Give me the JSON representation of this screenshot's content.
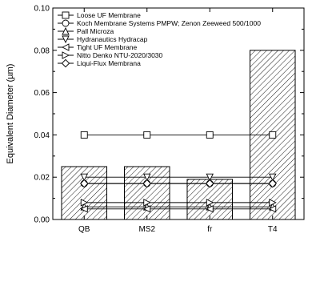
{
  "chart_data": {
    "type": "bar",
    "categories": [
      "QB",
      "MS2",
      "fr",
      "T4"
    ],
    "bar_values": [
      0.025,
      0.025,
      0.019,
      0.08
    ],
    "ylabel": "Equivalent Diameter (µm)",
    "ylim": [
      0,
      0.1
    ],
    "yticks": [
      "0.00",
      "0.02",
      "0.04",
      "0.06",
      "0.08",
      "0.10"
    ],
    "grid": false,
    "legend_position": "top-left",
    "series": [
      {
        "name": "Loose UF Membrane",
        "marker": "square",
        "values": [
          0.04,
          0.04,
          0.04,
          0.04
        ]
      },
      {
        "name": "Koch Membrane Systems PMPW; Zenon Zeeweed 500/1000",
        "marker": "circle",
        "values": [
          0.017,
          0.017,
          0.017,
          0.017
        ]
      },
      {
        "name": "Pall Microza",
        "marker": "triangle-up",
        "values": [
          0.006,
          0.006,
          0.006,
          0.006
        ]
      },
      {
        "name": "Hydranautics Hydracap",
        "marker": "triangle-down",
        "values": [
          0.02,
          0.02,
          0.02,
          0.02
        ]
      },
      {
        "name": "Tight UF Membrane",
        "marker": "triangle-left",
        "values": [
          0.005,
          0.005,
          0.005,
          0.005
        ]
      },
      {
        "name": "Nitto Denko NTU-2020/3030",
        "marker": "triangle-right",
        "values": [
          0.008,
          0.008,
          0.008,
          0.008
        ]
      },
      {
        "name": "Liqui-Flux Membrana",
        "marker": "diamond",
        "values": [
          0.017,
          0.017,
          0.017,
          0.017
        ]
      }
    ]
  }
}
